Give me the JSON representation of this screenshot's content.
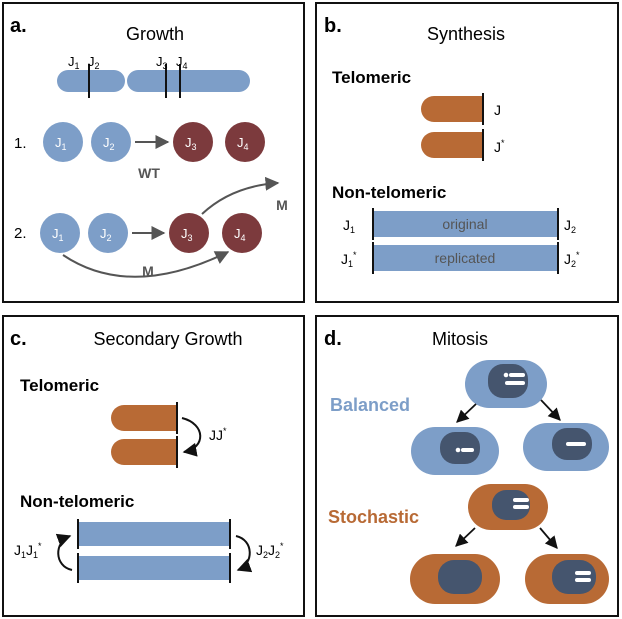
{
  "panels": {
    "a": {
      "letter": "a.",
      "title": "Growth",
      "chromosome_labels": [
        "J",
        "1",
        "J",
        "2",
        "J",
        "3",
        "J",
        "4"
      ],
      "row1_label": "1.",
      "row2_label": "2.",
      "circle_J": "J",
      "sub1": "1",
      "sub2": "2",
      "sub3": "3",
      "sub4": "4",
      "wt_label": "WT",
      "m_label": "M"
    },
    "b": {
      "letter": "b.",
      "title": "Synthesis",
      "telomeric": "Telomeric",
      "J": "J",
      "J_star": "J",
      "star": "*",
      "non_telomeric": "Non-telomeric",
      "original": "original",
      "replicated": "replicated",
      "sub1": "1",
      "sub2": "2"
    },
    "c": {
      "letter": "c.",
      "title": "Secondary Growth",
      "telomeric": "Telomeric",
      "JJ": "JJ",
      "star": "*",
      "non_telomeric": "Non-telomeric",
      "J": "J",
      "sub1": "1",
      "sub2": "2"
    },
    "d": {
      "letter": "d.",
      "title": "Mitosis",
      "balanced": "Balanced",
      "stochastic": "Stochastic"
    }
  },
  "colors": {
    "blue": "#7d9ec8",
    "maroon": "#7c3a3d",
    "orange": "#b86a35",
    "nucleus": "#45556e",
    "gray": "#555555"
  }
}
